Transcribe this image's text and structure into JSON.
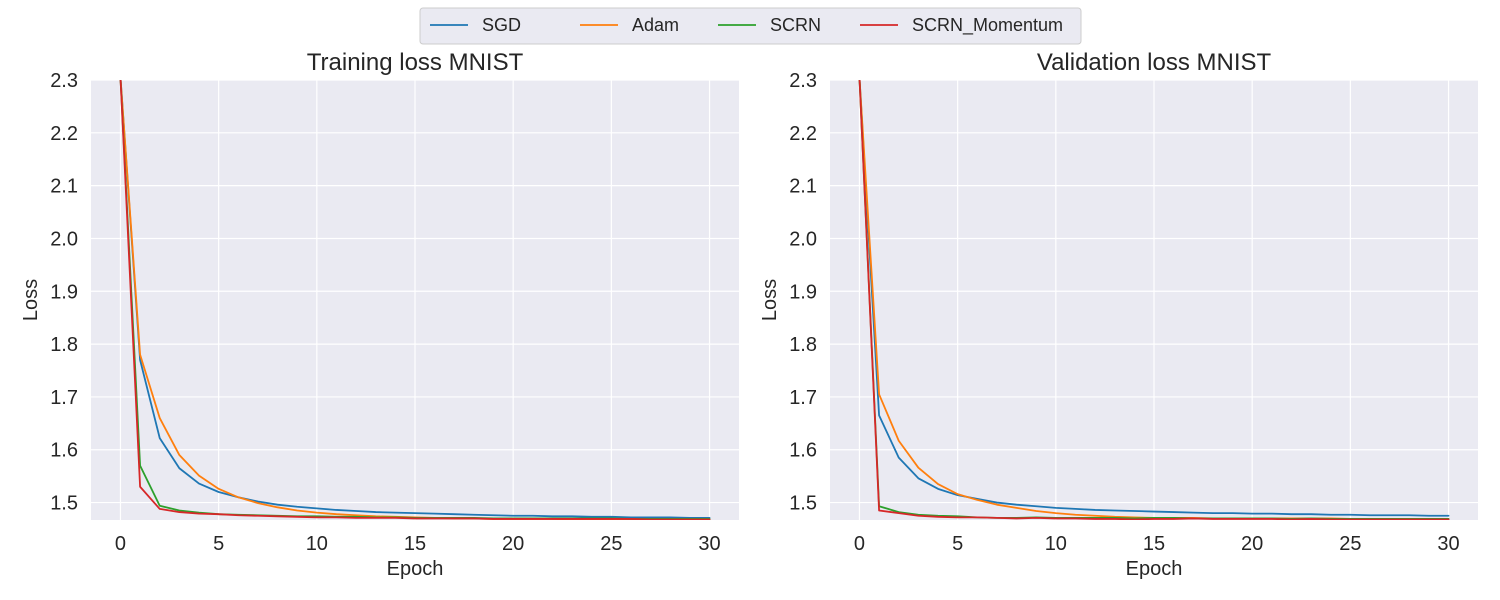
{
  "legend": {
    "placement": "top-center",
    "entries": [
      "SGD",
      "Adam",
      "SCRN",
      "SCRN_Momentum"
    ]
  },
  "colors": {
    "SGD": "#1f77b4",
    "Adam": "#ff7f0e",
    "SCRN": "#2ca02c",
    "SCRN_Momentum": "#d62728",
    "plot_bg": "#eaeaf2",
    "grid": "#ffffff"
  },
  "chart_data": [
    {
      "type": "line",
      "title": "Training loss MNIST",
      "xlabel": "Epoch",
      "ylabel": "Loss",
      "xlim": [
        -1.5,
        31.5
      ],
      "ylim": [
        1.467,
        2.3
      ],
      "xticks": [
        0,
        5,
        10,
        15,
        20,
        25,
        30
      ],
      "yticks": [
        1.5,
        1.6,
        1.7,
        1.8,
        1.9,
        2.0,
        2.1,
        2.2,
        2.3
      ],
      "ytick_labels": [
        "1.5",
        "1.6",
        "1.7",
        "1.8",
        "1.9",
        "2.0",
        "2.1",
        "2.2",
        "2.3"
      ],
      "grid": true,
      "series": [
        {
          "name": "SGD",
          "x": [
            0,
            1,
            2,
            3,
            4,
            5,
            6,
            7,
            8,
            9,
            10,
            11,
            12,
            13,
            14,
            15,
            16,
            17,
            18,
            19,
            20,
            21,
            22,
            23,
            24,
            25,
            26,
            27,
            28,
            29,
            30
          ],
          "values": [
            2.305,
            1.77,
            1.622,
            1.565,
            1.536,
            1.52,
            1.51,
            1.502,
            1.496,
            1.492,
            1.489,
            1.486,
            1.484,
            1.482,
            1.481,
            1.48,
            1.479,
            1.478,
            1.477,
            1.476,
            1.475,
            1.475,
            1.474,
            1.474,
            1.473,
            1.473,
            1.472,
            1.472,
            1.472,
            1.471,
            1.471
          ]
        },
        {
          "name": "Adam",
          "x": [
            0,
            1,
            2,
            3,
            4,
            5,
            6,
            7,
            8,
            9,
            10,
            11,
            12,
            13,
            14,
            15,
            16,
            17,
            18,
            19,
            20,
            21,
            22,
            23,
            24,
            25,
            26,
            27,
            28,
            29,
            30
          ],
          "values": [
            2.305,
            1.78,
            1.66,
            1.59,
            1.551,
            1.526,
            1.51,
            1.499,
            1.491,
            1.485,
            1.481,
            1.478,
            1.476,
            1.474,
            1.473,
            1.472,
            1.471,
            1.47,
            1.47,
            1.469,
            1.469,
            1.469,
            1.469,
            1.468,
            1.468,
            1.468,
            1.468,
            1.468,
            1.468,
            1.468,
            1.468
          ]
        },
        {
          "name": "SCRN",
          "x": [
            0,
            1,
            2,
            3,
            4,
            5,
            6,
            7,
            8,
            9,
            10,
            11,
            12,
            13,
            14,
            15,
            16,
            17,
            18,
            19,
            20,
            21,
            22,
            23,
            24,
            25,
            26,
            27,
            28,
            29,
            30
          ],
          "values": [
            2.305,
            1.57,
            1.494,
            1.485,
            1.481,
            1.478,
            1.477,
            1.476,
            1.475,
            1.474,
            1.474,
            1.473,
            1.473,
            1.472,
            1.472,
            1.471,
            1.471,
            1.471,
            1.471,
            1.47,
            1.47,
            1.47,
            1.47,
            1.47,
            1.47,
            1.47,
            1.469,
            1.469,
            1.469,
            1.469,
            1.469
          ]
        },
        {
          "name": "SCRN_Momentum",
          "x": [
            0,
            1,
            2,
            3,
            4,
            5,
            6,
            7,
            8,
            9,
            10,
            11,
            12,
            13,
            14,
            15,
            16,
            17,
            18,
            19,
            20,
            21,
            22,
            23,
            24,
            25,
            26,
            27,
            28,
            29,
            30
          ],
          "values": [
            2.305,
            1.53,
            1.488,
            1.482,
            1.479,
            1.478,
            1.476,
            1.475,
            1.474,
            1.473,
            1.472,
            1.472,
            1.471,
            1.471,
            1.471,
            1.47,
            1.47,
            1.47,
            1.47,
            1.469,
            1.469,
            1.469,
            1.469,
            1.469,
            1.469,
            1.469,
            1.469,
            1.468,
            1.468,
            1.468,
            1.468
          ]
        }
      ]
    },
    {
      "type": "line",
      "title": "Validation loss MNIST",
      "xlabel": "Epoch",
      "ylabel": "Loss",
      "xlim": [
        -1.5,
        31.5
      ],
      "ylim": [
        1.467,
        2.3
      ],
      "xticks": [
        0,
        5,
        10,
        15,
        20,
        25,
        30
      ],
      "yticks": [
        1.5,
        1.6,
        1.7,
        1.8,
        1.9,
        2.0,
        2.1,
        2.2,
        2.3
      ],
      "ytick_labels": [
        "1.5",
        "1.6",
        "1.7",
        "1.8",
        "1.9",
        "2.0",
        "2.1",
        "2.2",
        "2.3"
      ],
      "grid": true,
      "series": [
        {
          "name": "SGD",
          "x": [
            0,
            1,
            2,
            3,
            4,
            5,
            6,
            7,
            8,
            9,
            10,
            11,
            12,
            13,
            14,
            15,
            16,
            17,
            18,
            19,
            20,
            21,
            22,
            23,
            24,
            25,
            26,
            27,
            28,
            29,
            30
          ],
          "values": [
            2.305,
            1.665,
            1.585,
            1.546,
            1.526,
            1.514,
            1.507,
            1.5,
            1.496,
            1.493,
            1.49,
            1.488,
            1.486,
            1.485,
            1.484,
            1.483,
            1.482,
            1.481,
            1.48,
            1.48,
            1.479,
            1.479,
            1.478,
            1.478,
            1.477,
            1.477,
            1.476,
            1.476,
            1.476,
            1.475,
            1.475
          ]
        },
        {
          "name": "Adam",
          "x": [
            0,
            1,
            2,
            3,
            4,
            5,
            6,
            7,
            8,
            9,
            10,
            11,
            12,
            13,
            14,
            15,
            16,
            17,
            18,
            19,
            20,
            21,
            22,
            23,
            24,
            25,
            26,
            27,
            28,
            29,
            30
          ],
          "values": [
            2.305,
            1.705,
            1.617,
            1.566,
            1.535,
            1.516,
            1.505,
            1.496,
            1.49,
            1.484,
            1.48,
            1.477,
            1.475,
            1.473,
            1.472,
            1.471,
            1.471,
            1.471,
            1.47,
            1.47,
            1.47,
            1.47,
            1.47,
            1.47,
            1.47,
            1.469,
            1.469,
            1.469,
            1.469,
            1.469,
            1.469
          ]
        },
        {
          "name": "SCRN",
          "x": [
            0,
            1,
            2,
            3,
            4,
            5,
            6,
            7,
            8,
            9,
            10,
            11,
            12,
            13,
            14,
            15,
            16,
            17,
            18,
            19,
            20,
            21,
            22,
            23,
            24,
            25,
            26,
            27,
            28,
            29,
            30
          ],
          "values": [
            2.305,
            1.493,
            1.482,
            1.477,
            1.475,
            1.474,
            1.472,
            1.471,
            1.471,
            1.472,
            1.471,
            1.471,
            1.471,
            1.471,
            1.47,
            1.471,
            1.471,
            1.47,
            1.47,
            1.47,
            1.47,
            1.47,
            1.469,
            1.47,
            1.469,
            1.469,
            1.469,
            1.469,
            1.469,
            1.469,
            1.469
          ]
        },
        {
          "name": "SCRN_Momentum",
          "x": [
            0,
            1,
            2,
            3,
            4,
            5,
            6,
            7,
            8,
            9,
            10,
            11,
            12,
            13,
            14,
            15,
            16,
            17,
            18,
            19,
            20,
            21,
            22,
            23,
            24,
            25,
            26,
            27,
            28,
            29,
            30
          ],
          "values": [
            2.305,
            1.485,
            1.48,
            1.475,
            1.473,
            1.472,
            1.472,
            1.471,
            1.47,
            1.471,
            1.47,
            1.47,
            1.469,
            1.469,
            1.468,
            1.469,
            1.469,
            1.47,
            1.469,
            1.469,
            1.469,
            1.469,
            1.468,
            1.469,
            1.468,
            1.468,
            1.468,
            1.468,
            1.468,
            1.468,
            1.468
          ]
        }
      ]
    }
  ]
}
